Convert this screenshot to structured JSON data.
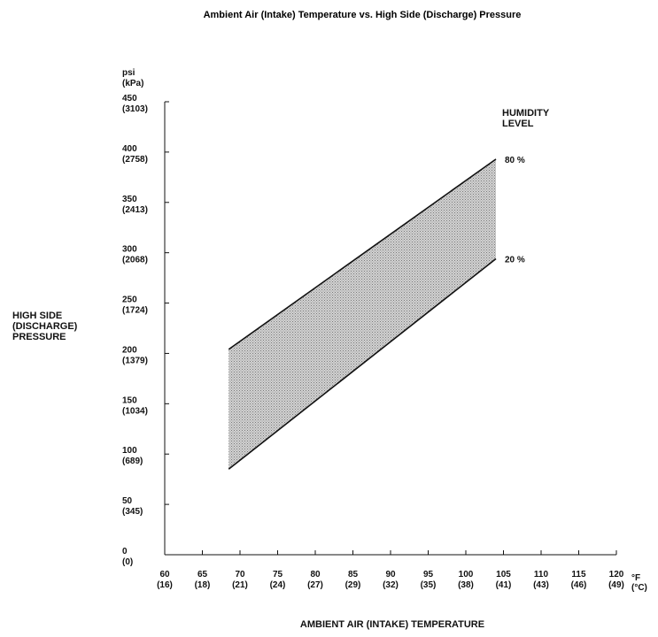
{
  "chart_data": {
    "type": "area",
    "title": "Ambient Air (Intake) Temperature vs. High Side (Discharge) Pressure",
    "ylabel_lines": [
      "HIGH SIDE",
      "(DISCHARGE)",
      "PRESSURE"
    ],
    "y_units": [
      "psi",
      "(kPa)"
    ],
    "xlabel": "AMBIENT AIR (INTAKE) TEMPERATURE",
    "x_units": [
      "°F",
      "(°C)"
    ],
    "x_ticks": [
      {
        "f": "60",
        "c": "(16)"
      },
      {
        "f": "65",
        "c": "(18)"
      },
      {
        "f": "70",
        "c": "(21)"
      },
      {
        "f": "75",
        "c": "(24)"
      },
      {
        "f": "80",
        "c": "(27)"
      },
      {
        "f": "85",
        "c": "(29)"
      },
      {
        "f": "90",
        "c": "(32)"
      },
      {
        "f": "95",
        "c": "(35)"
      },
      {
        "f": "100",
        "c": "(38)"
      },
      {
        "f": "105",
        "c": "(41)"
      },
      {
        "f": "110",
        "c": "(43)"
      },
      {
        "f": "115",
        "c": "(46)"
      },
      {
        "f": "120",
        "c": "(49)"
      }
    ],
    "y_ticks": [
      {
        "psi": "0",
        "kpa": "(0)"
      },
      {
        "psi": "50",
        "kpa": "(345)"
      },
      {
        "psi": "100",
        "kpa": "(689)"
      },
      {
        "psi": "150",
        "kpa": "(1034)"
      },
      {
        "psi": "200",
        "kpa": "(1379)"
      },
      {
        "psi": "250",
        "kpa": "(1724)"
      },
      {
        "psi": "300",
        "kpa": "(2068)"
      },
      {
        "psi": "350",
        "kpa": "(2413)"
      },
      {
        "psi": "400",
        "kpa": "(2758)"
      },
      {
        "psi": "450",
        "kpa": "(3103)"
      }
    ],
    "xlim": [
      60,
      120
    ],
    "ylim": [
      0,
      450
    ],
    "legend_title_lines": [
      "HUMIDITY",
      "LEVEL"
    ],
    "series": [
      {
        "name": "80 %",
        "x": [
          68.5,
          104
        ],
        "y": [
          204,
          393
        ]
      },
      {
        "name": "20 %",
        "x": [
          68.5,
          104
        ],
        "y": [
          85,
          294
        ]
      }
    ],
    "band_fill": "#b8b8b8",
    "grid": false
  }
}
